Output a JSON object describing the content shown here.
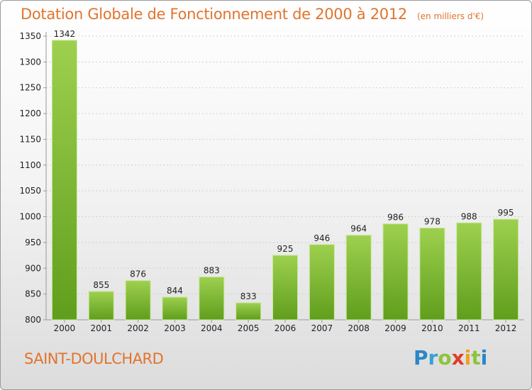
{
  "header": {
    "title": "Dotation Globale de Fonctionnement de 2000 à 2012",
    "subtitle": "(en milliers d'€)"
  },
  "footer": {
    "commune": "SAINT-DOULCHARD",
    "logo_text": "Proxiti"
  },
  "colors": {
    "title": "#e0742e",
    "bar_top": "#9ed04f",
    "bar_bottom": "#5f9e1c",
    "bar_edge": "#c8e896"
  },
  "chart_data": {
    "type": "bar",
    "title": "Dotation Globale de Fonctionnement de 2000 à 2012",
    "subtitle": "(en milliers d'€)",
    "categories": [
      "2000",
      "2001",
      "2002",
      "2003",
      "2004",
      "2005",
      "2006",
      "2007",
      "2008",
      "2009",
      "2010",
      "2011",
      "2012"
    ],
    "values": [
      1342,
      855,
      876,
      844,
      883,
      833,
      925,
      946,
      964,
      986,
      978,
      988,
      995
    ],
    "ylim": [
      800,
      1350
    ],
    "yticks": [
      800,
      850,
      900,
      950,
      1000,
      1050,
      1100,
      1150,
      1200,
      1250,
      1300,
      1350
    ],
    "grid": true,
    "legend": "none"
  }
}
